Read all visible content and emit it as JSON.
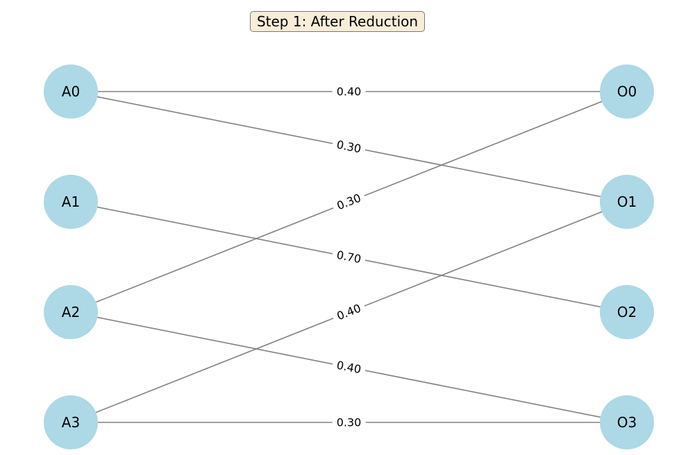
{
  "title": "Step 1: After Reduction",
  "colors": {
    "node_fill": "#add8e6",
    "edge": "#808080",
    "title_bg": "#f9edd9"
  },
  "nodes": {
    "left": [
      "A0",
      "A1",
      "A2",
      "A3"
    ],
    "right": [
      "O0",
      "O1",
      "O2",
      "O3"
    ]
  },
  "edges": [
    {
      "from": "A0",
      "to": "O0",
      "weight": "0.40"
    },
    {
      "from": "A0",
      "to": "O1",
      "weight": "0.30"
    },
    {
      "from": "A2",
      "to": "O0",
      "weight": "0.30"
    },
    {
      "from": "A1",
      "to": "O2",
      "weight": "0.70"
    },
    {
      "from": "A3",
      "to": "O1",
      "weight": "0.40"
    },
    {
      "from": "A2",
      "to": "O3",
      "weight": "0.40"
    },
    {
      "from": "A3",
      "to": "O3",
      "weight": "0.30"
    }
  ]
}
